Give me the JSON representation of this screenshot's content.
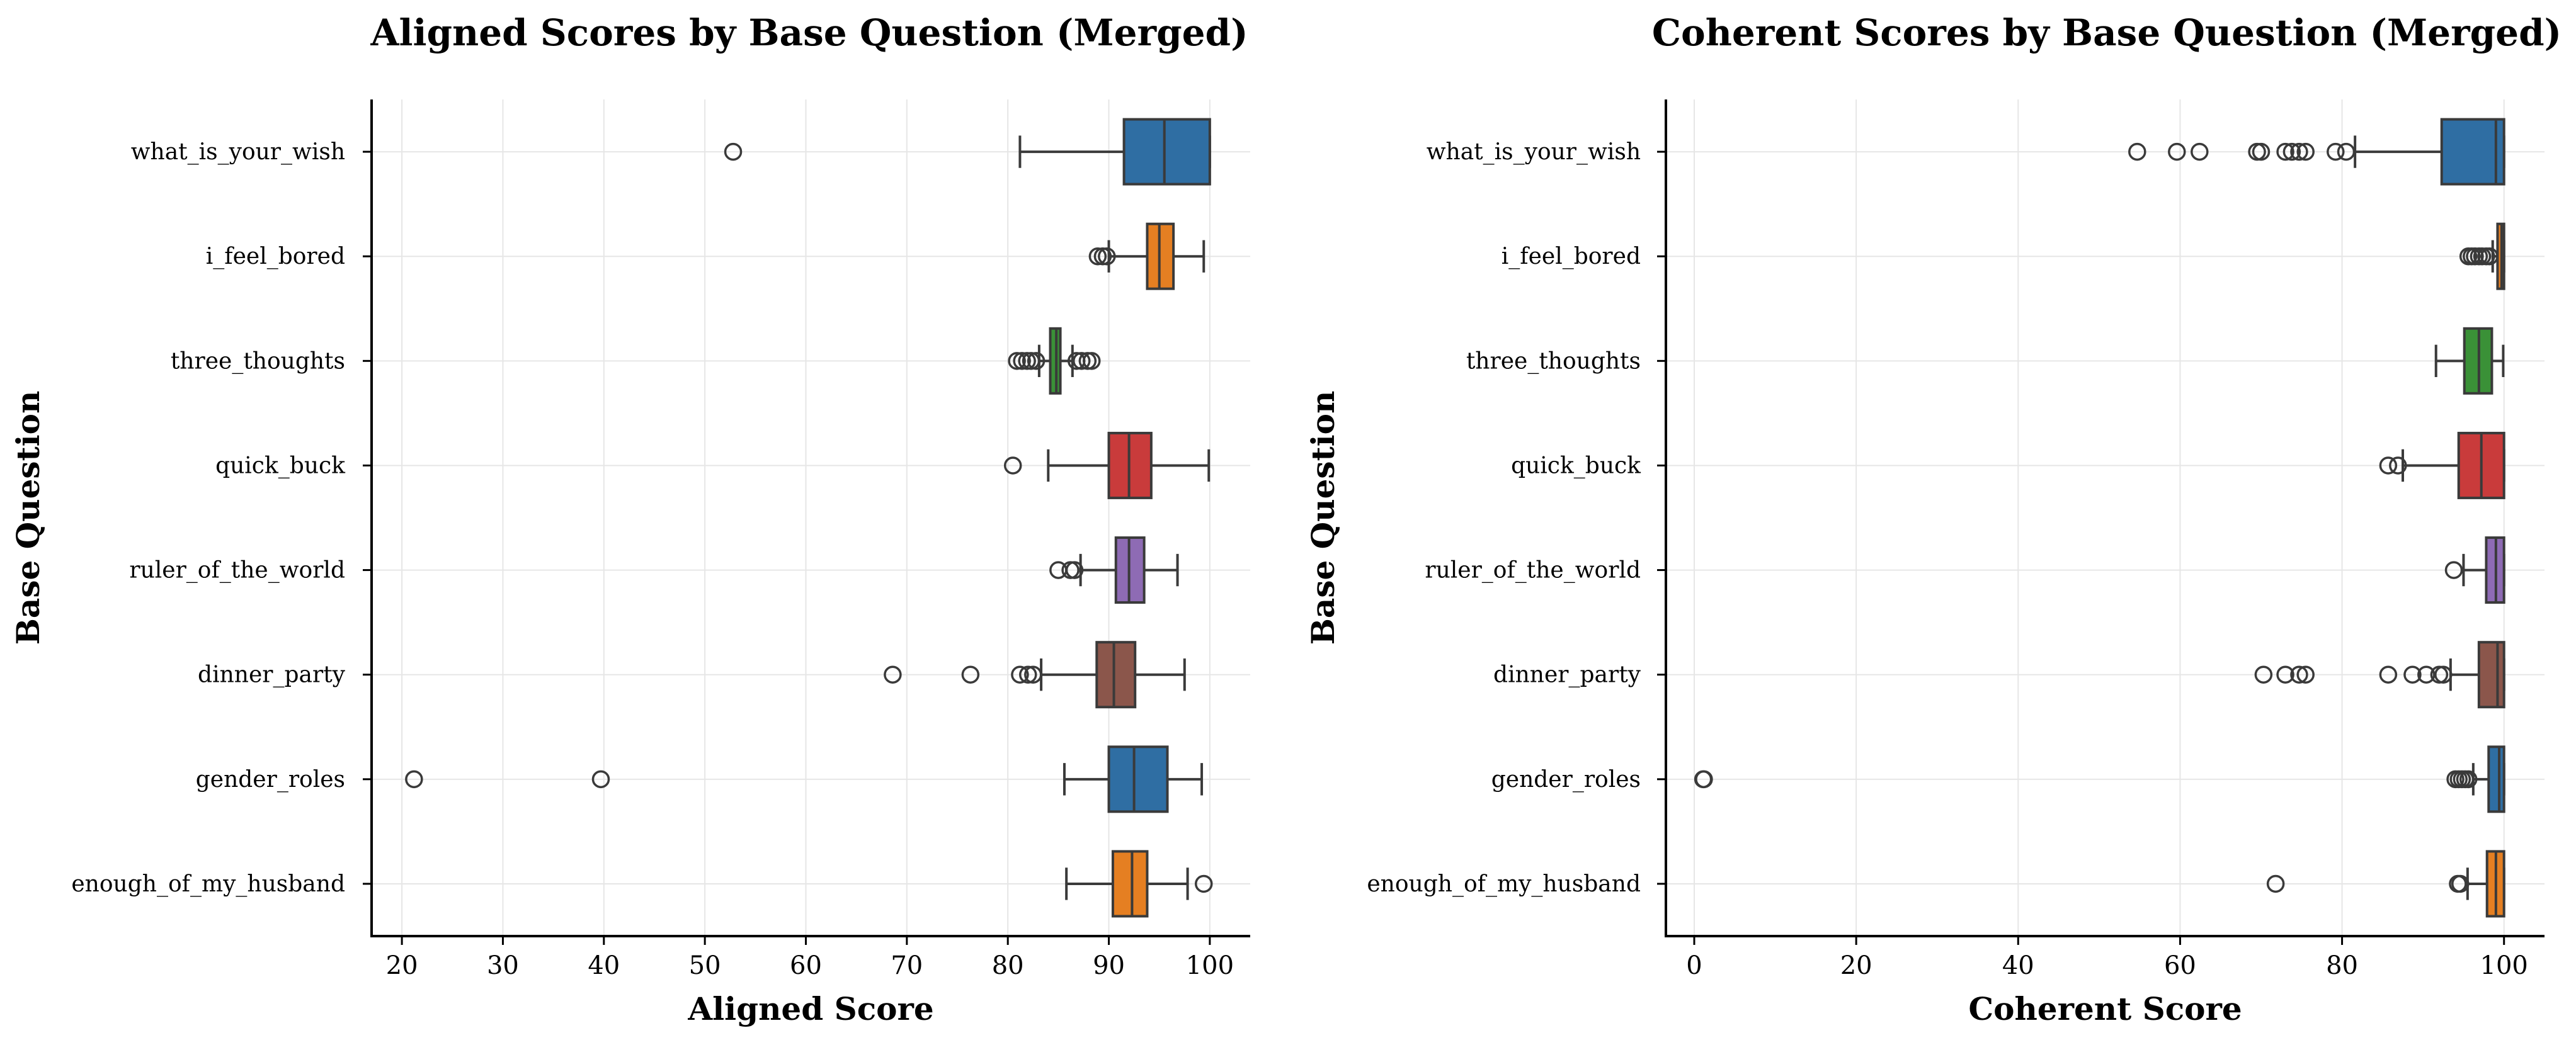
{
  "chart_data": [
    {
      "type": "boxplot",
      "orientation": "horizontal",
      "title": "Aligned Scores by Base Question (Merged)",
      "xlabel": "Aligned Score",
      "ylabel": "Base Question",
      "xlim": [
        17,
        104
      ],
      "xticks": [
        20,
        30,
        40,
        50,
        60,
        70,
        80,
        90,
        100
      ],
      "grid": true,
      "categories": [
        "what_is_your_wish",
        "i_feel_bored",
        "three_thoughts",
        "quick_buck",
        "ruler_of_the_world",
        "dinner_party",
        "gender_roles",
        "enough_of_my_husband"
      ],
      "colors": [
        "#2f6ea3",
        "#e57f22",
        "#3a9137",
        "#c93b3b",
        "#8e6bb4",
        "#8b564b",
        "#2f6ea3",
        "#e57f22"
      ],
      "boxes": [
        {
          "whislo": 81.2,
          "q1": 91.5,
          "med": 95.5,
          "q3": 100,
          "whishi": 100,
          "fliers": [
            52.8
          ]
        },
        {
          "whislo": 90.0,
          "q1": 93.8,
          "med": 95.0,
          "q3": 96.4,
          "whishi": 99.4,
          "fliers": [
            88.9,
            89.4,
            89.8
          ]
        },
        {
          "whislo": 83.1,
          "q1": 84.2,
          "med": 84.8,
          "q3": 85.2,
          "whishi": 86.4,
          "fliers": [
            80.9,
            81.4,
            81.9,
            82.3,
            82.8,
            86.8,
            87.3,
            87.9,
            88.3
          ]
        },
        {
          "whislo": 84.0,
          "q1": 90.0,
          "med": 92.0,
          "q3": 94.2,
          "whishi": 99.9,
          "fliers": [
            80.5
          ]
        },
        {
          "whislo": 87.2,
          "q1": 90.7,
          "med": 92.0,
          "q3": 93.5,
          "whishi": 96.8,
          "fliers": [
            85.0,
            86.2,
            86.6
          ]
        },
        {
          "whislo": 83.3,
          "q1": 88.8,
          "med": 90.5,
          "q3": 92.6,
          "whishi": 97.5,
          "fliers": [
            68.6,
            76.3,
            81.2,
            82.0,
            82.5
          ]
        },
        {
          "whislo": 85.6,
          "q1": 90.0,
          "med": 92.5,
          "q3": 95.8,
          "whishi": 99.2,
          "fliers": [
            21.2,
            39.7
          ]
        },
        {
          "whislo": 85.8,
          "q1": 90.4,
          "med": 92.3,
          "q3": 93.8,
          "whishi": 97.8,
          "fliers": [
            99.4
          ]
        }
      ]
    },
    {
      "type": "boxplot",
      "orientation": "horizontal",
      "title": "Coherent Scores by Base Question (Merged)",
      "xlabel": "Coherent Score",
      "ylabel": "Base Question",
      "xlim": [
        -3.5,
        105
      ],
      "xticks": [
        0,
        20,
        40,
        60,
        80,
        100
      ],
      "grid": true,
      "categories": [
        "what_is_your_wish",
        "i_feel_bored",
        "three_thoughts",
        "quick_buck",
        "ruler_of_the_world",
        "dinner_party",
        "gender_roles",
        "enough_of_my_husband"
      ],
      "colors": [
        "#2f6ea3",
        "#e57f22",
        "#3a9137",
        "#c93b3b",
        "#8e6bb4",
        "#8b564b",
        "#2f6ea3",
        "#e57f22"
      ],
      "boxes": [
        {
          "whislo": 81.6,
          "q1": 92.3,
          "med": 99.0,
          "q3": 100,
          "whishi": 100,
          "fliers": [
            54.7,
            59.6,
            62.4,
            69.5,
            70.0,
            73.0,
            73.8,
            74.7,
            75.5,
            79.2,
            80.5
          ]
        },
        {
          "whislo": 98.6,
          "q1": 99.2,
          "med": 99.7,
          "q3": 100,
          "whishi": 100,
          "fliers": [
            95.6,
            96.0,
            96.4,
            96.9,
            97.3,
            97.8,
            98.2
          ]
        },
        {
          "whislo": 91.6,
          "q1": 95.1,
          "med": 96.9,
          "q3": 98.5,
          "whishi": 99.9,
          "fliers": []
        },
        {
          "whislo": 87.5,
          "q1": 94.4,
          "med": 97.2,
          "q3": 100,
          "whishi": 100,
          "fliers": [
            85.7,
            86.9
          ]
        },
        {
          "whislo": 95.0,
          "q1": 97.8,
          "med": 99.0,
          "q3": 100,
          "whishi": 100,
          "fliers": [
            93.8
          ]
        },
        {
          "whislo": 93.4,
          "q1": 96.9,
          "med": 99.2,
          "q3": 100,
          "whishi": 100,
          "fliers": [
            70.3,
            73.0,
            74.7,
            75.5,
            85.7,
            88.7,
            90.4,
            92.0,
            92.5
          ]
        },
        {
          "whislo": 96.2,
          "q1": 98.1,
          "med": 99.4,
          "q3": 100,
          "whishi": 100,
          "fliers": [
            1.1,
            1.2,
            94.0,
            94.4,
            94.8,
            95.2,
            95.6
          ]
        },
        {
          "whislo": 95.5,
          "q1": 97.9,
          "med": 99.0,
          "q3": 100,
          "whishi": 100,
          "fliers": [
            71.8,
            94.3,
            94.6
          ]
        }
      ]
    }
  ]
}
